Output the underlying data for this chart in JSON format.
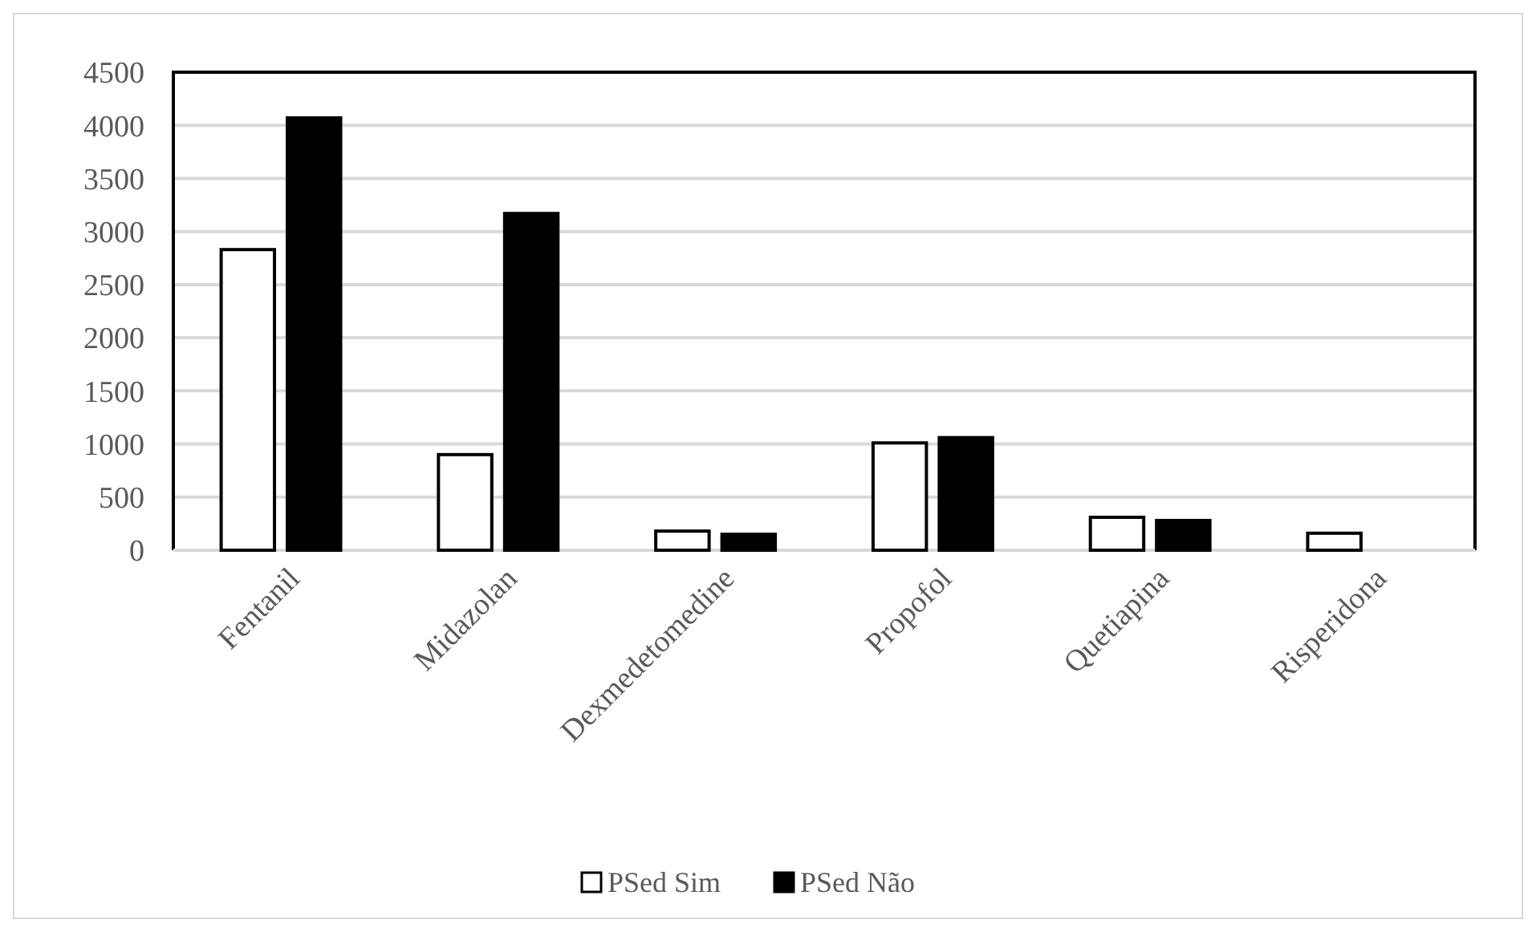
{
  "chart_data": {
    "type": "bar",
    "categories": [
      "Fentanil",
      "Midazolan",
      "Dexmedetomedine",
      "Propofol",
      "Quetiapina",
      "Risperidona"
    ],
    "series": [
      {
        "name": "PSed Sim",
        "color": "#ffffff",
        "values": [
          2830,
          900,
          180,
          1010,
          310,
          160
        ]
      },
      {
        "name": "PSed Não",
        "color": "#000000",
        "values": [
          4070,
          3170,
          150,
          1060,
          280,
          null
        ]
      }
    ],
    "ylim": [
      0,
      4500
    ],
    "yticks": [
      0,
      500,
      1000,
      1500,
      2000,
      2500,
      3000,
      3500,
      4000,
      4500
    ],
    "grid": "y",
    "legend": "bottom"
  }
}
